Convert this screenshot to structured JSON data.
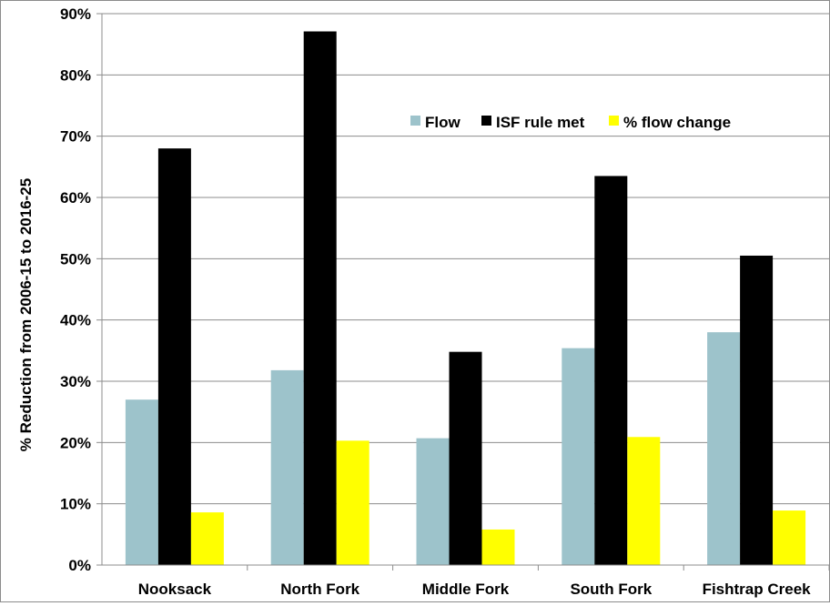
{
  "chart_data": {
    "type": "bar",
    "title": "",
    "xlabel": "",
    "ylabel": "% Reduction from 2006-15 to 2016-25",
    "ylim": [
      0,
      0.9
    ],
    "yticks": [
      0,
      0.1,
      0.2,
      0.3,
      0.4,
      0.5,
      0.6,
      0.7,
      0.8,
      0.9
    ],
    "ytick_labels": [
      "0%",
      "10%",
      "20%",
      "30%",
      "40%",
      "50%",
      "60%",
      "70%",
      "80%",
      "90%"
    ],
    "grid": true,
    "legend_position": "top-right",
    "categories": [
      "Nooksack",
      "North Fork",
      "Middle Fork",
      "South Fork",
      "Fishtrap Creek"
    ],
    "series": [
      {
        "name": "Flow",
        "color": "#9dc3cb",
        "values": [
          0.27,
          0.318,
          0.207,
          0.354,
          0.38
        ]
      },
      {
        "name": "ISF rule met",
        "color": "#000000",
        "values": [
          0.68,
          0.871,
          0.348,
          0.635,
          0.505
        ]
      },
      {
        "name": "% flow change",
        "color": "#ffff00",
        "values": [
          0.086,
          0.203,
          0.058,
          0.209,
          0.089
        ]
      }
    ]
  }
}
